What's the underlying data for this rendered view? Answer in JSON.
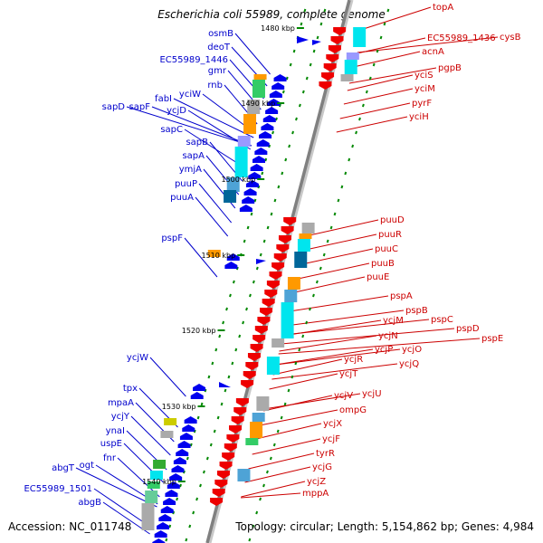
{
  "title": "Escherichia coli 55989, complete genome",
  "accession": "Accession: NC_011748",
  "summary": "Topology: circular; Length: 5,154,862 bp; Genes: 4,984",
  "colors": {
    "forward_label": "#0000cc",
    "reverse_label": "#cc0000",
    "forward_arrow": "#0000ee",
    "reverse_arrow": "#ee0000",
    "backbone": "#808080",
    "tick": "#008800"
  },
  "kbp_labels": [
    "1480 kbp",
    "1490 kbp",
    "1500 kbp",
    "1510 kbp",
    "1520 kbp",
    "1530 kbp",
    "1540 kbp"
  ],
  "forward_genes": [
    "osmB",
    "deoT",
    "EC55989_1446",
    "gmr",
    "rnb",
    "yciW",
    "fabI",
    "sapF",
    "sapD",
    "ycjD",
    "sapC",
    "sapB",
    "sapA",
    "ymjA",
    "puuP",
    "puuA",
    "pspF",
    "ycjW",
    "tpx",
    "mpaA",
    "ycjY",
    "ynaI",
    "uspE",
    "fnr",
    "ogt",
    "abgT",
    "EC55989_1501",
    "abgB"
  ],
  "reverse_genes": [
    "topA",
    "cysB",
    "EC55989_1436",
    "acnA",
    "pgpB",
    "yciS",
    "yciM",
    "pyrF",
    "yciH",
    "puuD",
    "puuR",
    "puuC",
    "puuB",
    "puuE",
    "pspA",
    "pspB",
    "pspC",
    "pspD",
    "pspE",
    "ycjM",
    "ycjN",
    "ycjO",
    "ycjP",
    "ycjQ",
    "ycjR",
    "ycjT",
    "ycjU",
    "ycjV",
    "ompG",
    "ycjX",
    "ycjF",
    "tyrR",
    "ycjG",
    "ycjZ",
    "mppA"
  ]
}
